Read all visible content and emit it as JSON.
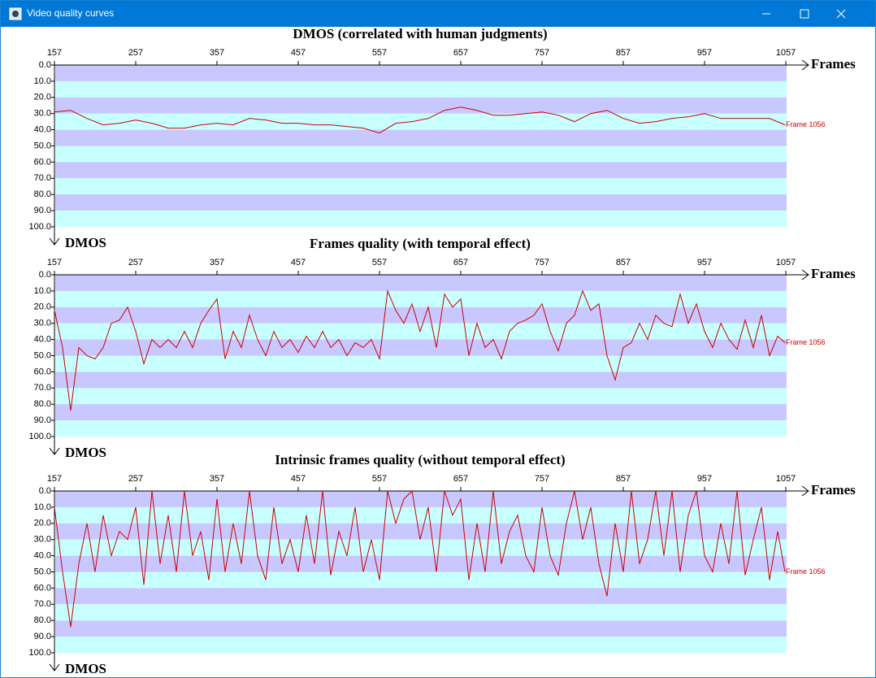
{
  "window_title": "Video quality curves",
  "chart_data": [
    {
      "type": "line",
      "title": "DMOS (correlated with human judgments)",
      "x_label": "Frames",
      "y_label": "DMOS",
      "annotation": "Frame 1056",
      "band_colors": [
        "#c8c8ff",
        "#c8ffff"
      ],
      "xlim": [
        157,
        1057
      ],
      "xticks": [
        157,
        257,
        357,
        457,
        557,
        657,
        757,
        857,
        957,
        1057
      ],
      "ylim": [
        100,
        0
      ],
      "yticks": [
        {
          "value": 0,
          "label": "0.0"
        },
        {
          "value": 10,
          "label": "10.0"
        },
        {
          "value": 20,
          "label": "20.0"
        },
        {
          "value": 30,
          "label": "30.0"
        },
        {
          "value": 40,
          "label": "40.0"
        },
        {
          "value": 50,
          "label": "50.0"
        },
        {
          "value": 60,
          "label": "60.0"
        },
        {
          "value": 70,
          "label": "70.0"
        },
        {
          "value": 80,
          "label": "80.0"
        },
        {
          "value": 90,
          "label": "90.0"
        },
        {
          "value": 100,
          "label": "100.0"
        }
      ],
      "x": [
        157,
        177,
        197,
        217,
        237,
        257,
        277,
        297,
        317,
        337,
        357,
        377,
        397,
        417,
        437,
        457,
        477,
        497,
        517,
        537,
        557,
        577,
        597,
        617,
        637,
        657,
        677,
        697,
        717,
        737,
        757,
        777,
        797,
        817,
        837,
        857,
        877,
        897,
        917,
        937,
        957,
        977,
        997,
        1017,
        1037,
        1056
      ],
      "series": [
        {
          "color": "#cc0000",
          "values": [
            29,
            28,
            33,
            37,
            36,
            34,
            36,
            39,
            39,
            37,
            36,
            37,
            33,
            34,
            36,
            36,
            37,
            37,
            38,
            39,
            42,
            36,
            35,
            33,
            28,
            26,
            28,
            31,
            31,
            30,
            29,
            31,
            35,
            30,
            28,
            33,
            36,
            35,
            33,
            32,
            30,
            33,
            33,
            33,
            33,
            37
          ]
        }
      ]
    },
    {
      "type": "line",
      "title": "Frames quality (with temporal effect)",
      "x_label": "Frames",
      "y_label": "DMOS",
      "annotation": "Frame 1056",
      "band_colors": [
        "#c8c8ff",
        "#c8ffff"
      ],
      "xlim": [
        157,
        1057
      ],
      "xticks": [
        157,
        257,
        357,
        457,
        557,
        657,
        757,
        857,
        957,
        1057
      ],
      "ylim": [
        100,
        0
      ],
      "yticks": [
        {
          "value": 0,
          "label": "0.0"
        },
        {
          "value": 10,
          "label": "10.0"
        },
        {
          "value": 20,
          "label": "20.0"
        },
        {
          "value": 30,
          "label": "30.0"
        },
        {
          "value": 40,
          "label": "40.0"
        },
        {
          "value": 50,
          "label": "50.0"
        },
        {
          "value": 60,
          "label": "60.0"
        },
        {
          "value": 70,
          "label": "70.0"
        },
        {
          "value": 80,
          "label": "80.0"
        },
        {
          "value": 90,
          "label": "90.0"
        },
        {
          "value": 100,
          "label": "100.0"
        }
      ],
      "x": [
        157,
        167,
        177,
        187,
        197,
        207,
        217,
        227,
        237,
        247,
        257,
        267,
        277,
        287,
        297,
        307,
        317,
        327,
        337,
        347,
        357,
        367,
        377,
        387,
        397,
        407,
        417,
        427,
        437,
        447,
        457,
        467,
        477,
        487,
        497,
        507,
        517,
        527,
        537,
        547,
        557,
        567,
        577,
        587,
        597,
        607,
        617,
        627,
        637,
        647,
        657,
        667,
        677,
        687,
        697,
        707,
        717,
        727,
        737,
        747,
        757,
        767,
        777,
        787,
        797,
        807,
        817,
        827,
        837,
        847,
        857,
        867,
        877,
        887,
        897,
        907,
        917,
        927,
        937,
        947,
        957,
        967,
        977,
        987,
        997,
        1007,
        1017,
        1027,
        1037,
        1047,
        1056
      ],
      "series": [
        {
          "color": "#cc0000",
          "values": [
            22,
            45,
            84,
            45,
            50,
            52,
            45,
            30,
            28,
            20,
            35,
            55,
            40,
            45,
            40,
            45,
            35,
            45,
            30,
            22,
            15,
            52,
            35,
            45,
            25,
            40,
            50,
            35,
            45,
            40,
            48,
            38,
            45,
            35,
            45,
            40,
            50,
            42,
            45,
            40,
            52,
            10,
            22,
            30,
            18,
            35,
            20,
            45,
            12,
            20,
            15,
            50,
            30,
            45,
            40,
            52,
            35,
            30,
            28,
            25,
            18,
            35,
            47,
            30,
            25,
            10,
            22,
            18,
            50,
            65,
            45,
            42,
            30,
            40,
            25,
            30,
            32,
            12,
            30,
            18,
            35,
            45,
            30,
            40,
            46,
            28,
            45,
            25,
            50,
            38,
            42
          ]
        }
      ]
    },
    {
      "type": "line",
      "title": "Intrinsic frames quality (without temporal effect)",
      "x_label": "Frames",
      "y_label": "DMOS",
      "annotation": "Frame 1056",
      "band_colors": [
        "#c8c8ff",
        "#c8ffff"
      ],
      "xlim": [
        157,
        1057
      ],
      "xticks": [
        157,
        257,
        357,
        457,
        557,
        657,
        757,
        857,
        957,
        1057
      ],
      "ylim": [
        100,
        0
      ],
      "yticks": [
        {
          "value": 0,
          "label": "0.0"
        },
        {
          "value": 10,
          "label": "10.0"
        },
        {
          "value": 20,
          "label": "20.0"
        },
        {
          "value": 30,
          "label": "30.0"
        },
        {
          "value": 40,
          "label": "40.0"
        },
        {
          "value": 50,
          "label": "50.0"
        },
        {
          "value": 60,
          "label": "60.0"
        },
        {
          "value": 70,
          "label": "70.0"
        },
        {
          "value": 80,
          "label": "80.0"
        },
        {
          "value": 90,
          "label": "90.0"
        },
        {
          "value": 100,
          "label": "100.0"
        }
      ],
      "x": [
        157,
        167,
        177,
        187,
        197,
        207,
        217,
        227,
        237,
        247,
        257,
        267,
        277,
        287,
        297,
        307,
        317,
        327,
        337,
        347,
        357,
        367,
        377,
        387,
        397,
        407,
        417,
        427,
        437,
        447,
        457,
        467,
        477,
        487,
        497,
        507,
        517,
        527,
        537,
        547,
        557,
        567,
        577,
        587,
        597,
        607,
        617,
        627,
        637,
        647,
        657,
        667,
        677,
        687,
        697,
        707,
        717,
        727,
        737,
        747,
        757,
        767,
        777,
        787,
        797,
        807,
        817,
        827,
        837,
        847,
        857,
        867,
        877,
        887,
        897,
        907,
        917,
        927,
        937,
        947,
        957,
        967,
        977,
        987,
        997,
        1007,
        1017,
        1027,
        1037,
        1047,
        1056
      ],
      "series": [
        {
          "color": "#cc0000",
          "values": [
            10,
            50,
            84,
            45,
            20,
            50,
            15,
            40,
            25,
            30,
            10,
            58,
            0,
            45,
            15,
            50,
            0,
            40,
            25,
            55,
            5,
            50,
            20,
            45,
            0,
            40,
            55,
            10,
            45,
            30,
            50,
            15,
            45,
            0,
            52,
            25,
            40,
            10,
            50,
            30,
            55,
            0,
            20,
            5,
            0,
            30,
            10,
            50,
            0,
            15,
            5,
            55,
            20,
            50,
            0,
            45,
            25,
            15,
            40,
            50,
            10,
            40,
            52,
            20,
            0,
            30,
            10,
            45,
            65,
            20,
            50,
            0,
            45,
            30,
            0,
            40,
            0,
            50,
            15,
            0,
            40,
            50,
            20,
            45,
            0,
            52,
            30,
            10,
            55,
            25,
            50
          ]
        }
      ]
    }
  ]
}
